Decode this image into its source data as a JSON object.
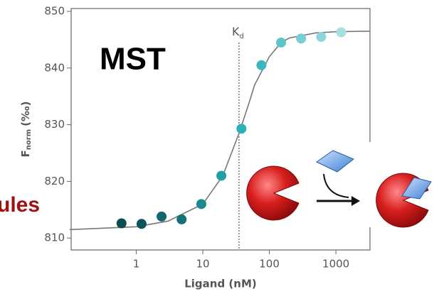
{
  "chart_data": {
    "type": "scatter",
    "title": "MST",
    "side_label": "ules",
    "x_label": "Ligand (nM)",
    "y_label": {
      "main": "F",
      "sub": "norm",
      "unit": "(‰)"
    },
    "kd_label": {
      "main": "K",
      "sub": "d"
    },
    "kd": 35,
    "x": [
      0.6,
      1.2,
      2.4,
      4.8,
      9.5,
      19,
      38,
      76,
      150,
      300,
      600,
      1200
    ],
    "values": [
      812.6,
      812.5,
      813.8,
      813.3,
      816,
      821,
      829.3,
      840.5,
      844.5,
      845.2,
      845.5,
      846.3
    ],
    "colors": [
      "#0e4a52",
      "#0f525a",
      "#12666e",
      "#15707a",
      "#1a8a92",
      "#22a0aa",
      "#2bb0b8",
      "#3ab8bf",
      "#5cc5ca",
      "#76cfd3",
      "#8cd6d9",
      "#a6dfe1"
    ],
    "fit": {
      "color": "#777777",
      "x": [
        0.1,
        1,
        3,
        10,
        20,
        35,
        50,
        60,
        100,
        150,
        200,
        500,
        1000,
        3200
      ],
      "values": [
        811.5,
        812,
        813,
        816,
        821,
        828.5,
        834,
        837,
        842,
        844.5,
        845.3,
        846.2,
        846.4,
        846.5
      ]
    },
    "xlim": [
      0.105,
      3250
    ],
    "ylim": [
      807.9,
      850.5
    ],
    "log_x": true,
    "xticks": [
      1,
      10,
      100,
      1000
    ],
    "yticks": [
      810,
      820,
      830,
      840,
      850
    ]
  }
}
